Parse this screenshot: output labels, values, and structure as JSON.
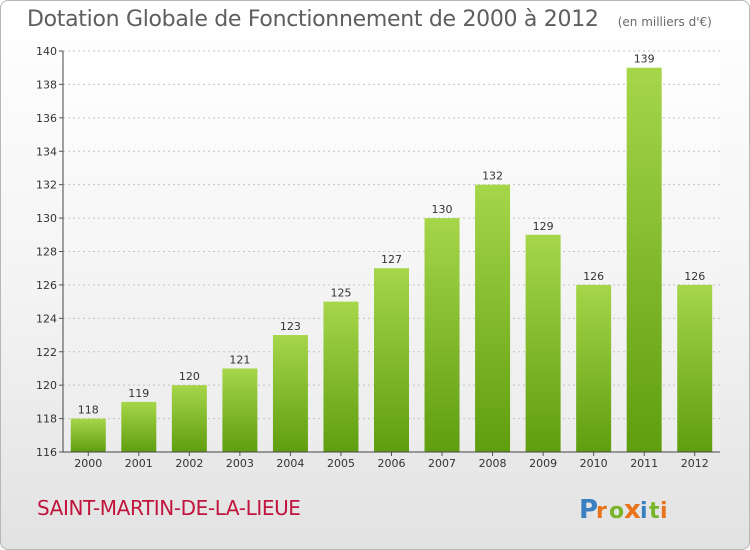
{
  "header": {
    "title": "Dotation Globale de Fonctionnement de 2000 à 2012",
    "unit": "(en milliers d'€)"
  },
  "commune": "SAINT-MARTIN-DE-LA-LIEUE",
  "logo": {
    "text": "Proxiti",
    "letters": [
      "P",
      "r",
      "o",
      "x",
      "i",
      "t",
      "i"
    ],
    "colors": [
      "#3a7fc1",
      "#e8731a",
      "#79b52a",
      "#e8731a",
      "#3a7fc1",
      "#79b52a",
      "#e8731a"
    ]
  },
  "colors": {
    "bar_top": "#a6d64a",
    "bar_bottom": "#5f9e0f",
    "title": "#5e5e5e",
    "commune": "#c0143c"
  },
  "chart_data": {
    "type": "bar",
    "categories": [
      "2000",
      "2001",
      "2002",
      "2003",
      "2004",
      "2005",
      "2006",
      "2007",
      "2008",
      "2009",
      "2010",
      "2011",
      "2012"
    ],
    "values": [
      118,
      119,
      120,
      121,
      123,
      125,
      127,
      130,
      132,
      129,
      126,
      139,
      126
    ],
    "ylim": [
      116,
      140
    ],
    "yticks": [
      116,
      118,
      120,
      122,
      124,
      126,
      128,
      130,
      132,
      134,
      136,
      138,
      140
    ],
    "grid": true,
    "title": "Dotation Globale de Fonctionnement de 2000 à 2012",
    "xlabel": "",
    "ylabel": ""
  }
}
